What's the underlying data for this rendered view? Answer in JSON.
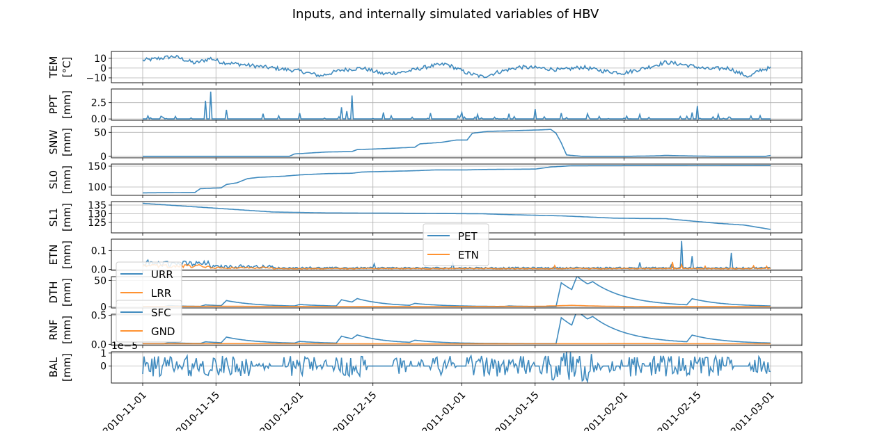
{
  "chart_data": {
    "type": "line",
    "title": "Inputs, and internally simulated variables of HBV",
    "x_range": [
      "2010-11-01",
      "2011-03-01"
    ],
    "x_ticks": [
      "2010-11-01",
      "2010-11-15",
      "2010-12-01",
      "2010-12-15",
      "2011-01-01",
      "2011-01-15",
      "2011-02-01",
      "2011-02-15",
      "2011-03-01"
    ],
    "grid": true,
    "colors": {
      "blue": "#1f77b4",
      "orange": "#ff7f0e"
    },
    "panels": [
      {
        "id": "tem",
        "ylabel": "TEM",
        "unit": "[°C]",
        "ylim": [
          -15,
          17
        ],
        "yticks": [
          10,
          0,
          -10
        ],
        "ytick_labels": [
          "10",
          "0",
          "−10"
        ],
        "series": [
          {
            "name": "",
            "color": "#1f77b4",
            "kind": "tem"
          }
        ]
      },
      {
        "id": "ppt",
        "ylabel": "PPT",
        "unit": "[mm]",
        "ylim": [
          -0.2,
          4.6
        ],
        "yticks": [
          0,
          2.5
        ],
        "ytick_labels": [
          "0.0",
          "2.5"
        ],
        "series": [
          {
            "name": "",
            "color": "#1f77b4",
            "kind": "ppt"
          }
        ]
      },
      {
        "id": "snw",
        "ylabel": "SNW",
        "unit": "[mm]",
        "ylim": [
          -3,
          62
        ],
        "yticks": [
          0,
          50
        ],
        "ytick_labels": [
          "0",
          "50"
        ],
        "series": [
          {
            "name": "",
            "color": "#1f77b4",
            "kind": "snw"
          }
        ]
      },
      {
        "id": "sl0",
        "ylabel": "SL0",
        "unit": "[mm]",
        "ylim": [
          80,
          155
        ],
        "yticks": [
          100,
          150
        ],
        "ytick_labels": [
          "100",
          "150"
        ],
        "series": [
          {
            "name": "",
            "color": "#1f77b4",
            "kind": "sl0"
          }
        ]
      },
      {
        "id": "sl1",
        "ylabel": "SL1",
        "unit": "[mm]",
        "ylim": [
          119,
          137
        ],
        "yticks": [
          125,
          130,
          135
        ],
        "ytick_labels": [
          "125",
          "130",
          "135"
        ],
        "series": [
          {
            "name": "",
            "color": "#1f77b4",
            "kind": "sl1"
          }
        ]
      },
      {
        "id": "etn",
        "ylabel": "ETN",
        "unit": "[mm]",
        "ylim": [
          -0.005,
          0.16
        ],
        "yticks": [
          0,
          0.1
        ],
        "ytick_labels": [
          "0.0",
          "0.1"
        ],
        "legend": {
          "position": "top-center"
        },
        "series": [
          {
            "name": "PET",
            "color": "#1f77b4",
            "kind": "pet"
          },
          {
            "name": "ETN",
            "color": "#ff7f0e",
            "kind": "etn"
          }
        ]
      },
      {
        "id": "dth",
        "ylabel": "DTH",
        "unit": "[mm]",
        "ylim": [
          -2,
          57
        ],
        "yticks": [
          0,
          50
        ],
        "ytick_labels": [
          "0",
          "50"
        ],
        "legend": {
          "position": "top-left"
        },
        "series": [
          {
            "name": "URR",
            "color": "#1f77b4",
            "kind": "urr"
          },
          {
            "name": "LRR",
            "color": "#ff7f0e",
            "kind": "lrr"
          }
        ]
      },
      {
        "id": "rnf",
        "ylabel": "RNF",
        "unit": "[mm]",
        "ylim": [
          -0.02,
          0.52
        ],
        "yticks": [
          0,
          0.5
        ],
        "ytick_labels": [
          "0.0",
          "0.5"
        ],
        "legend": {
          "position": "top-left"
        },
        "series": [
          {
            "name": "SFC",
            "color": "#1f77b4",
            "kind": "sfc"
          },
          {
            "name": "GND",
            "color": "#ff7f0e",
            "kind": "gnd"
          }
        ]
      },
      {
        "id": "bal",
        "ylabel": "BAL",
        "unit": "[mm]",
        "ylim": [
          -1.3,
          1.1
        ],
        "yticks": [
          1,
          0
        ],
        "ytick_labels": [
          "1",
          "0"
        ],
        "offset_text": "1e−5",
        "series": [
          {
            "name": "",
            "color": "#1f77b4",
            "kind": "bal"
          }
        ]
      }
    ]
  }
}
